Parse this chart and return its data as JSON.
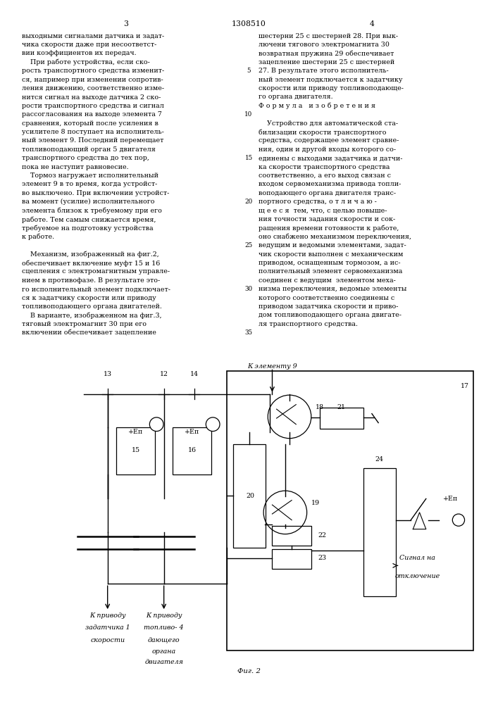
{
  "page_width": 7.07,
  "page_height": 10.0,
  "background_color": "#ffffff",
  "text_color": "#000000",
  "page_number_left": "3",
  "page_number_center": "1308510",
  "page_number_right": "4",
  "font_size_body": 6.8,
  "left_col_lines": [
    "выходными сигналами датчика и задат-",
    "чика скорости даже при несоответст-",
    "вии коэффициентов их передач.",
    "    При работе устройства, если ско-",
    "рость транспортного средства изменит-",
    "ся, например при изменении сопротив-",
    "ления движению, соответственно изме-",
    "нится сигнал на выходе датчика 2 ско-",
    "рости транспортного средства и сигнал",
    "рассогласования на выходе элемента 7",
    "сравнения, который после усиления в",
    "усилителе 8 поступает на исполнитель-",
    "ный элемент 9. Последний перемещает",
    "топливоподающий орган 5 двигателя",
    "транспортного средства до тех пор,",
    "пока не наступит равновесие.",
    "    Тормоз нагружает исполнительный",
    "элемент 9 в то время, когда устройст-",
    "во выключено. При включении устройст-",
    "ва момент (усилие) исполнительного",
    "элемента близок к требуемому при его",
    "работе. Тем самым снижается время,",
    "требуемое на подготовку устройства",
    "к работе.",
    "",
    "    Механизм, изображенный на фиг.2,",
    "обеспечивает включение муфт 15 и 16",
    "сцепления с электромагнитным управле-",
    "нием в противофазе. В результате это-",
    "го исполнительный элемент подключает-",
    "ся к задатчику скорости или приводу",
    "топливоподающего органа двигателей.",
    "    В варианте, изображенном на фиг.3,",
    "тяговый электромагнит 30 при его",
    "включении обеспечивает зацепление"
  ],
  "right_col_lines": [
    "шестерни 25 с шестерней 28. При вык-",
    "лючени тягового электромагнита 30",
    "возвратная пружина 29 обеспечивает",
    "зацепление шестерни 25 с шестерней",
    "27. В результате этого исполнитель-",
    "ный элемент подключается к задатчику",
    "скорости или приводу топливоподающе-",
    "го органа двигателя.",
    "Ф о р м у л а   и з о б р е т е н и я",
    "",
    "    Устройство для автоматической ста-",
    "билизации скорости транспортного",
    "средства, содержащее элемент сравне-",
    "ния, один и другой входы которого со-",
    "единены с выходами задатчика и датчи-",
    "ка скорости транспортного средства",
    "соответственно, а его выход связан с",
    "входом сервомеханизма привода топли-",
    "воподающего органа двигателя транс-",
    "портного средства, о т л и ч а ю -",
    "щ е е с я  тем, что, с целью повыше-",
    "ния точности задания скорости и сок-",
    "ращения времени готовности к работе,",
    "оно снабжено механизмом переключения,",
    "ведущим и ведомыми элементами, задат-",
    "чик скорости выполнен с механическим",
    "приводом, оснащенным тормозом, а ис-",
    "полнительный элемент сервомеханизма",
    "соединен с ведущим  элементом меха-",
    "низма переключения, ведомые элементы",
    "которого соответственно соединены с",
    "приводом задатчика скорости и приво-",
    "дом топливоподающего органа двигате-",
    "ля транспортного средства."
  ],
  "fig_caption": "Фиг. 2"
}
